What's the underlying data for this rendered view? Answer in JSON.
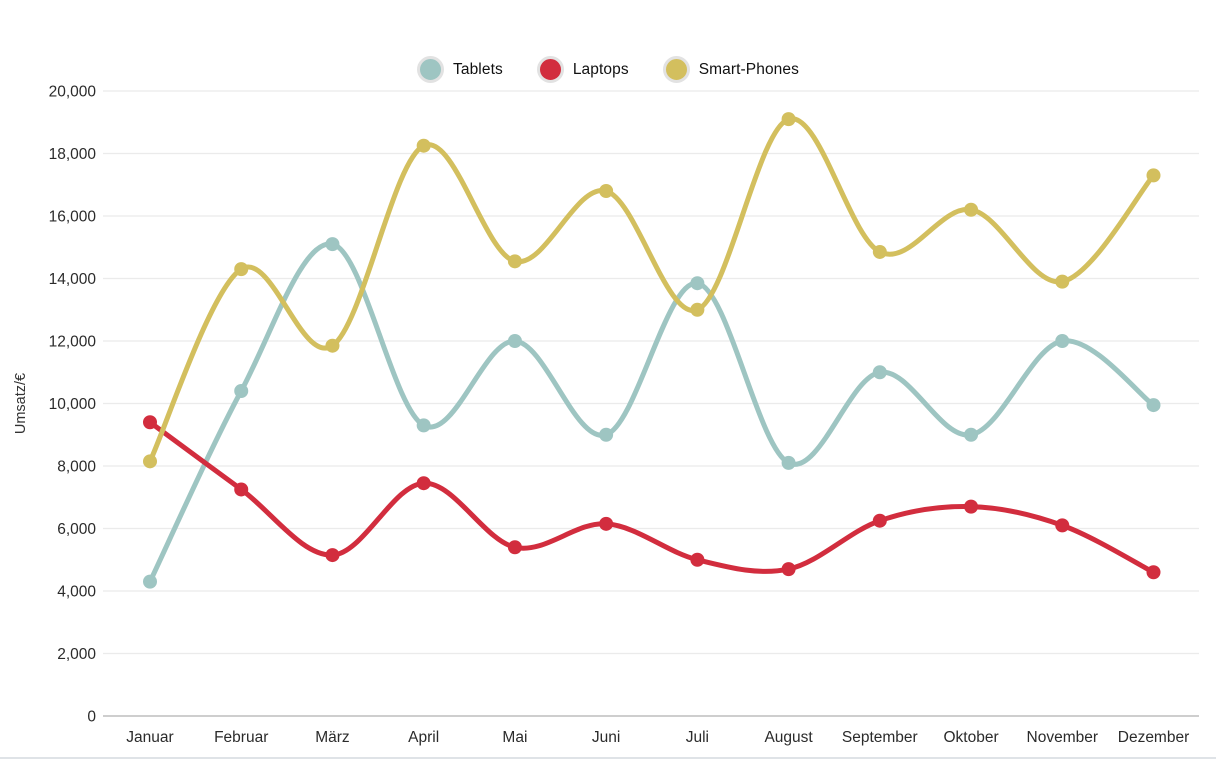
{
  "page": {
    "background": "#ffffff"
  },
  "y_axis": {
    "title": "Umsatz/€",
    "tick_labels": [
      "0",
      "2,000",
      "4,000",
      "6,000",
      "8,000",
      "10,000",
      "12,000",
      "14,000",
      "16,000",
      "18,000",
      "20,000"
    ]
  },
  "chart_data": {
    "type": "line",
    "smoothing": "spline",
    "grid": "horizontal",
    "legend_position": "top-center",
    "ylabel": "Umsatz/€",
    "ylim": [
      0,
      20000
    ],
    "ytick_step": 2000,
    "categories": [
      "Januar",
      "Februar",
      "März",
      "April",
      "Mai",
      "Juni",
      "Juli",
      "August",
      "September",
      "Oktober",
      "November",
      "Dezember"
    ],
    "series": [
      {
        "name": "Tablets",
        "color": "#9ec5c2",
        "values": [
          4300,
          10400,
          15100,
          9300,
          12000,
          9000,
          13850,
          8100,
          11000,
          9000,
          12000,
          9950
        ]
      },
      {
        "name": "Laptops",
        "color": "#d22d3e",
        "values": [
          9400,
          7250,
          5150,
          7450,
          5400,
          6150,
          5000,
          4700,
          6250,
          6700,
          6100,
          4600
        ]
      },
      {
        "name": "Smart-Phones",
        "color": "#d3bf5e",
        "values": [
          8150,
          14300,
          11850,
          18250,
          14550,
          16800,
          13000,
          19100,
          14850,
          16200,
          13900,
          17300
        ]
      }
    ],
    "colors": {
      "gridline": "#ebebeb",
      "zero_line": "#bdbdbd",
      "tick_text": "#2b2b2b",
      "legend_ring": "#e2e2e2"
    }
  }
}
